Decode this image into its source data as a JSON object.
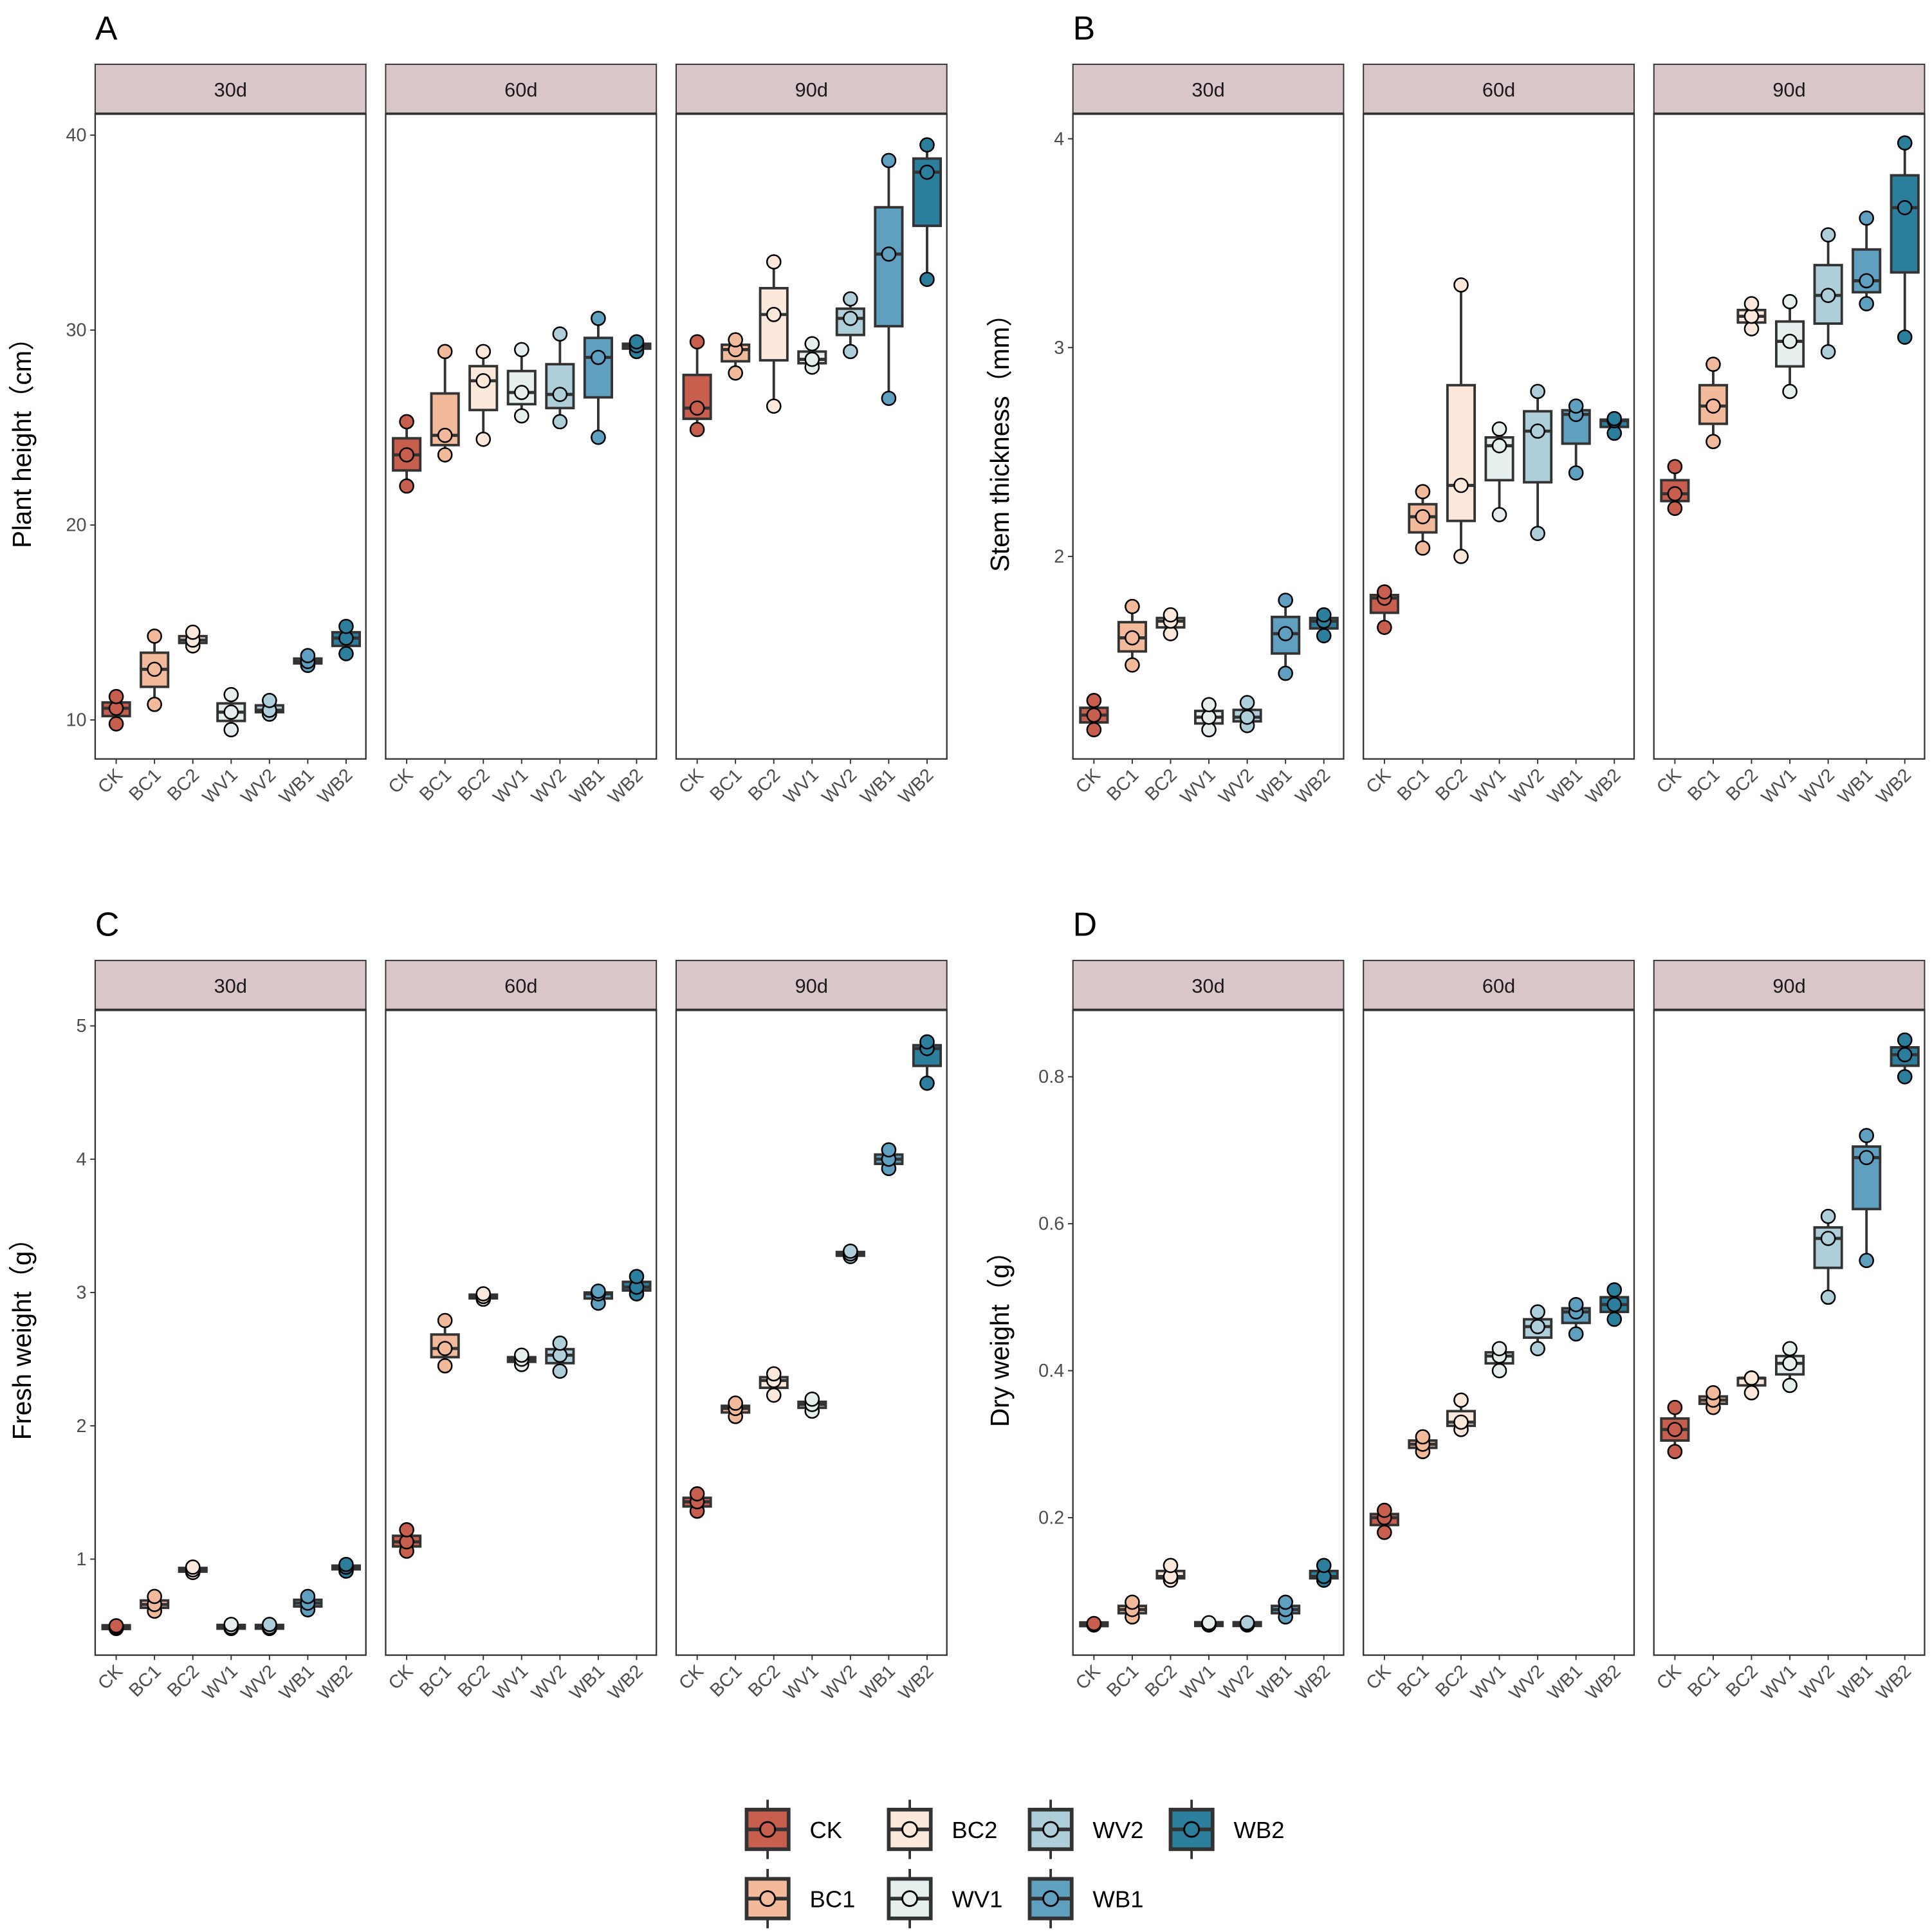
{
  "colors": {
    "CK": "#C85E4E",
    "BC1": "#F2BA9A",
    "BC2": "#FCE9DC",
    "WV1": "#E4EFEE",
    "WV2": "#AECFD9",
    "WB1": "#5F9FBF",
    "WB2": "#2C7F9C",
    "strip": "#D9C6C8"
  },
  "legend": {
    "row1": [
      "CK",
      "BC2",
      "WV2",
      "WB2"
    ],
    "row2": [
      "BC1",
      "WV1",
      "WB1"
    ]
  },
  "chart_data": [
    {
      "type": "box",
      "panel": "A",
      "ylabel": "Plant height（cm）",
      "ylim": [
        8.0,
        41.1
      ],
      "yticks": [
        10,
        20,
        30,
        40
      ],
      "categories": [
        "CK",
        "BC1",
        "BC2",
        "WV1",
        "WV2",
        "WB1",
        "WB2"
      ],
      "facets": [
        "30d",
        "60d",
        "90d"
      ],
      "values": {
        "30d": [
          [
            11.2,
            10.6,
            9.8
          ],
          [
            14.3,
            12.6,
            10.8
          ],
          [
            14.5,
            14.1,
            13.8
          ],
          [
            11.3,
            10.4,
            9.5
          ],
          [
            11.0,
            10.5,
            10.3
          ],
          [
            13.3,
            13.0,
            12.8
          ],
          [
            14.8,
            14.2,
            13.4
          ]
        ],
        "60d": [
          [
            25.3,
            23.6,
            22.0
          ],
          [
            28.9,
            24.6,
            23.6
          ],
          [
            28.9,
            27.4,
            24.4
          ],
          [
            29.0,
            26.8,
            25.6
          ],
          [
            29.8,
            26.7,
            25.3
          ],
          [
            30.6,
            28.6,
            24.5
          ],
          [
            29.4,
            29.2,
            28.9
          ]
        ],
        "90d": [
          [
            29.4,
            26.0,
            24.9
          ],
          [
            29.5,
            29.0,
            27.8
          ],
          [
            33.5,
            30.8,
            26.1
          ],
          [
            29.3,
            28.5,
            28.1
          ],
          [
            31.6,
            30.6,
            28.9
          ],
          [
            38.7,
            33.9,
            26.5
          ],
          [
            39.5,
            38.1,
            32.6
          ]
        ]
      }
    },
    {
      "type": "box",
      "panel": "B",
      "ylabel": "Stem thickness（mm）",
      "ylim": [
        1.03,
        4.12
      ],
      "yticks": [
        2,
        3,
        4
      ],
      "categories": [
        "CK",
        "BC1",
        "BC2",
        "WV1",
        "WV2",
        "WB1",
        "WB2"
      ],
      "facets": [
        "30d",
        "60d",
        "90d"
      ],
      "values": {
        "30d": [
          [
            1.31,
            1.24,
            1.17
          ],
          [
            1.76,
            1.61,
            1.48
          ],
          [
            1.72,
            1.69,
            1.63
          ],
          [
            1.29,
            1.23,
            1.17
          ],
          [
            1.3,
            1.23,
            1.19
          ],
          [
            1.79,
            1.63,
            1.44
          ],
          [
            1.72,
            1.69,
            1.62
          ]
        ],
        "60d": [
          [
            1.83,
            1.8,
            1.66
          ],
          [
            2.31,
            2.19,
            2.04
          ],
          [
            3.3,
            2.34,
            2.0
          ],
          [
            2.61,
            2.53,
            2.2
          ],
          [
            2.79,
            2.6,
            2.11
          ],
          [
            2.72,
            2.68,
            2.4
          ],
          [
            2.66,
            2.65,
            2.59
          ]
        ],
        "90d": [
          [
            2.43,
            2.3,
            2.23
          ],
          [
            2.92,
            2.72,
            2.55
          ],
          [
            3.21,
            3.15,
            3.09
          ],
          [
            3.22,
            3.03,
            2.79
          ],
          [
            3.54,
            3.25,
            2.98
          ],
          [
            3.62,
            3.32,
            3.21
          ],
          [
            3.98,
            3.67,
            3.05
          ]
        ]
      }
    },
    {
      "type": "box",
      "panel": "C",
      "ylabel": "Fresh weight（g）",
      "ylim": [
        0.28,
        5.12
      ],
      "yticks": [
        1,
        2,
        3,
        4,
        5
      ],
      "categories": [
        "CK",
        "BC1",
        "BC2",
        "WV1",
        "WV2",
        "WB1",
        "WB2"
      ],
      "facets": [
        "30d",
        "60d",
        "90d"
      ],
      "values": {
        "30d": [
          [
            0.5,
            0.49,
            0.48
          ],
          [
            0.72,
            0.66,
            0.61
          ],
          [
            0.94,
            0.92,
            0.9
          ],
          [
            0.51,
            0.49,
            0.48
          ],
          [
            0.51,
            0.49,
            0.48
          ],
          [
            0.72,
            0.67,
            0.62
          ],
          [
            0.96,
            0.94,
            0.91
          ]
        ],
        "60d": [
          [
            1.22,
            1.13,
            1.06
          ],
          [
            2.79,
            2.58,
            2.45
          ],
          [
            2.99,
            2.97,
            2.95
          ],
          [
            2.53,
            2.5,
            2.46
          ],
          [
            2.62,
            2.53,
            2.41
          ],
          [
            3.01,
            2.99,
            2.92
          ],
          [
            3.12,
            3.04,
            2.99
          ]
        ],
        "90d": [
          [
            1.49,
            1.43,
            1.36
          ],
          [
            2.17,
            2.13,
            2.07
          ],
          [
            2.39,
            2.34,
            2.23
          ],
          [
            2.2,
            2.16,
            2.11
          ],
          [
            3.31,
            3.29,
            3.27
          ],
          [
            4.07,
            4.0,
            3.93
          ],
          [
            4.88,
            4.83,
            4.57
          ]
        ]
      }
    },
    {
      "type": "box",
      "panel": "D",
      "ylabel": "Dry weight（g）",
      "ylim": [
        0.013,
        0.891
      ],
      "yticks": [
        0.2,
        0.4,
        0.6,
        0.8
      ],
      "categories": [
        "CK",
        "BC1",
        "BC2",
        "WV1",
        "WV2",
        "WB1",
        "WB2"
      ],
      "facets": [
        "30d",
        "60d",
        "90d"
      ],
      "values": {
        "30d": [
          [
            0.056,
            0.055,
            0.054
          ],
          [
            0.085,
            0.075,
            0.065
          ],
          [
            0.135,
            0.12,
            0.115
          ],
          [
            0.057,
            0.055,
            0.054
          ],
          [
            0.057,
            0.055,
            0.054
          ],
          [
            0.085,
            0.075,
            0.065
          ],
          [
            0.135,
            0.12,
            0.115
          ]
        ],
        "60d": [
          [
            0.21,
            0.2,
            0.18
          ],
          [
            0.31,
            0.3,
            0.29
          ],
          [
            0.36,
            0.33,
            0.32
          ],
          [
            0.43,
            0.42,
            0.4
          ],
          [
            0.48,
            0.46,
            0.43
          ],
          [
            0.49,
            0.48,
            0.45
          ],
          [
            0.51,
            0.49,
            0.47
          ]
        ],
        "90d": [
          [
            0.35,
            0.32,
            0.29
          ],
          [
            0.37,
            0.36,
            0.35
          ],
          [
            0.39,
            0.39,
            0.37
          ],
          [
            0.43,
            0.41,
            0.38
          ],
          [
            0.61,
            0.58,
            0.5
          ],
          [
            0.72,
            0.69,
            0.55
          ],
          [
            0.85,
            0.83,
            0.8
          ]
        ]
      }
    }
  ]
}
